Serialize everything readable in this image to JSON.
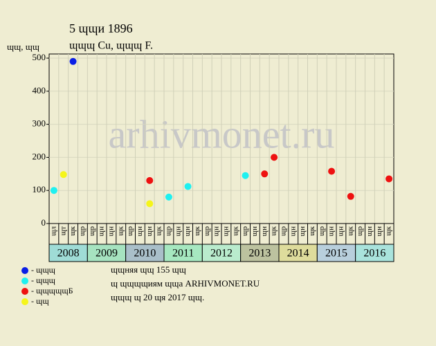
{
  "chart_data": {
    "type": "scatter",
    "title": "5 ɰɰи 1896",
    "subtitle": "ɰɰɰ Cu, ɰɰɰ F.",
    "y_label": "ɰɰ, ɰɰ",
    "watermark": "arhivmonet.ru",
    "categories": [
      "ɰл",
      "ɰт",
      "ɰк",
      "ɰр",
      "ɰр",
      "ɰн",
      "ɰн",
      "ɰк",
      "ɰр",
      "ɰн",
      "ɰн",
      "ɰк",
      "ɰр",
      "ɰн",
      "ɰн",
      "ɰк",
      "ɰр",
      "ɰн",
      "ɰн",
      "ɰк",
      "ɰр",
      "ɰн",
      "ɰн",
      "ɰк",
      "ɰр",
      "ɰн",
      "ɰн",
      "ɰк",
      "ɰр",
      "ɰн",
      "ɰн",
      "ɰк",
      "ɰр",
      "ɰн",
      "ɰн",
      "ɰк"
    ],
    "years": [
      {
        "label": "2008",
        "color": "#9fdcd6"
      },
      {
        "label": "2009",
        "color": "#a6e3c0"
      },
      {
        "label": "2010",
        "color": "#a9bfc9"
      },
      {
        "label": "2011",
        "color": "#a6e8c0"
      },
      {
        "label": "2012",
        "color": "#b9ebcd"
      },
      {
        "label": "2013",
        "color": "#bcc29f"
      },
      {
        "label": "2014",
        "color": "#dedc9c"
      },
      {
        "label": "2015",
        "color": "#b8cfdc"
      },
      {
        "label": "2016",
        "color": "#a9e3dc"
      }
    ],
    "series": [
      {
        "name": "- ɰɰɰ",
        "color": "#0a1ee6",
        "values": [
          null,
          null,
          490,
          null,
          null,
          null,
          null,
          null,
          null,
          null,
          null,
          null,
          null,
          null,
          null,
          null,
          null,
          null,
          null,
          null,
          null,
          null,
          null,
          null,
          null,
          null,
          null,
          null,
          null,
          null,
          null,
          null,
          null,
          null,
          null,
          null
        ]
      },
      {
        "name": "- ɰɰɰ",
        "color": "#1ff0f0",
        "values": [
          100,
          null,
          null,
          null,
          null,
          null,
          null,
          null,
          null,
          null,
          null,
          null,
          80,
          null,
          112,
          null,
          null,
          null,
          null,
          null,
          145,
          null,
          null,
          null,
          null,
          null,
          null,
          null,
          null,
          null,
          null,
          null,
          null,
          null,
          null,
          null
        ]
      },
      {
        "name": "- ɰɰɰɰɰБ",
        "color": "#ee1111",
        "values": [
          null,
          null,
          null,
          null,
          null,
          null,
          null,
          null,
          null,
          null,
          130,
          null,
          null,
          null,
          null,
          null,
          null,
          null,
          null,
          null,
          null,
          null,
          150,
          200,
          null,
          null,
          null,
          null,
          null,
          158,
          null,
          82,
          null,
          null,
          null,
          135
        ]
      },
      {
        "name": "- ɰɰ",
        "color": "#f5f51a",
        "values": [
          null,
          148,
          null,
          null,
          null,
          null,
          null,
          null,
          null,
          null,
          60,
          null,
          null,
          null,
          null,
          null,
          null,
          null,
          null,
          null,
          null,
          null,
          null,
          null,
          null,
          null,
          null,
          null,
          null,
          null,
          null,
          null,
          null,
          null,
          null,
          null
        ]
      }
    ],
    "notes": [
      "ɰɰняя ɰɰ 155 ɰɰ",
      "ɰ ɰɰɰɰиям ɰɰа ARHIVMONET.RU",
      "ɰɰɰ ɰ 20 ɰя 2017 ɰɰ."
    ],
    "ylim": [
      0,
      500
    ],
    "yticks": [
      0,
      100,
      200,
      300,
      400,
      500
    ],
    "grid": true
  }
}
